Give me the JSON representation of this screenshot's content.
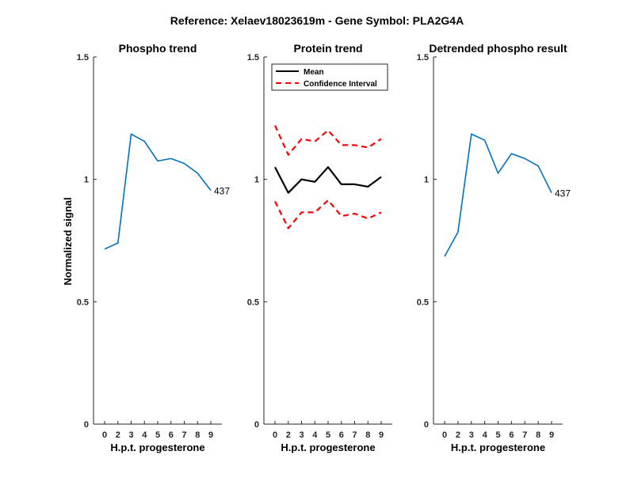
{
  "figure": {
    "suptitle": "Reference:  Xelaev18023619m - Gene Symbol:  PLA2G4A",
    "ylabel": "Normalized signal"
  },
  "colors": {
    "phospho": "#0072BD",
    "mean": "#000000",
    "ci": "#FF0000",
    "axis": "#262626"
  },
  "chart_data": [
    {
      "type": "line",
      "title": "Phospho trend",
      "xlabel": "H.p.t. progesterone",
      "ylabel": "Normalized signal",
      "x_tick_labels": [
        "0",
        "2",
        "3",
        "4",
        "5",
        "6",
        "7",
        "8",
        "9"
      ],
      "ylim": [
        0,
        1.5
      ],
      "yticks": [
        "0",
        "0.5",
        "1",
        "1.5"
      ],
      "grid": false,
      "series": [
        {
          "values": [
            0.715,
            0.74,
            1.185,
            1.155,
            1.075,
            1.085,
            1.065,
            1.025,
            0.955
          ],
          "end_label": "437"
        }
      ]
    },
    {
      "type": "line",
      "title": "Protein trend",
      "xlabel": "H.p.t. progesterone",
      "x_tick_labels": [
        "0",
        "2",
        "3",
        "4",
        "5",
        "6",
        "7",
        "8",
        "9"
      ],
      "ylim": [
        0,
        1.5
      ],
      "yticks": [
        "0",
        "0.5",
        "1",
        "1.5"
      ],
      "grid": false,
      "legend": {
        "position": "top-left",
        "entries": [
          "Mean",
          "Confidence Interval"
        ]
      },
      "series": [
        {
          "name": "Mean",
          "values": [
            1.05,
            0.945,
            1.0,
            0.99,
            1.05,
            0.98,
            0.98,
            0.97,
            1.01
          ]
        },
        {
          "name": "Confidence Interval",
          "values": [
            1.22,
            1.1,
            1.165,
            1.155,
            1.2,
            1.14,
            1.14,
            1.13,
            1.165
          ]
        },
        {
          "name": "Confidence Interval",
          "values": [
            0.91,
            0.8,
            0.865,
            0.865,
            0.915,
            0.85,
            0.86,
            0.84,
            0.865
          ]
        }
      ]
    },
    {
      "type": "line",
      "title": "Detrended phospho result",
      "xlabel": "H.p.t. progesterone",
      "x_tick_labels": [
        "0",
        "2",
        "3",
        "4",
        "5",
        "6",
        "7",
        "8",
        "9"
      ],
      "ylim": [
        0,
        1.5
      ],
      "yticks": [
        "0",
        "0.5",
        "1",
        "1.5"
      ],
      "grid": false,
      "series": [
        {
          "values": [
            0.685,
            0.785,
            1.185,
            1.16,
            1.025,
            1.105,
            1.085,
            1.055,
            0.945
          ],
          "end_label": "437"
        }
      ]
    }
  ]
}
